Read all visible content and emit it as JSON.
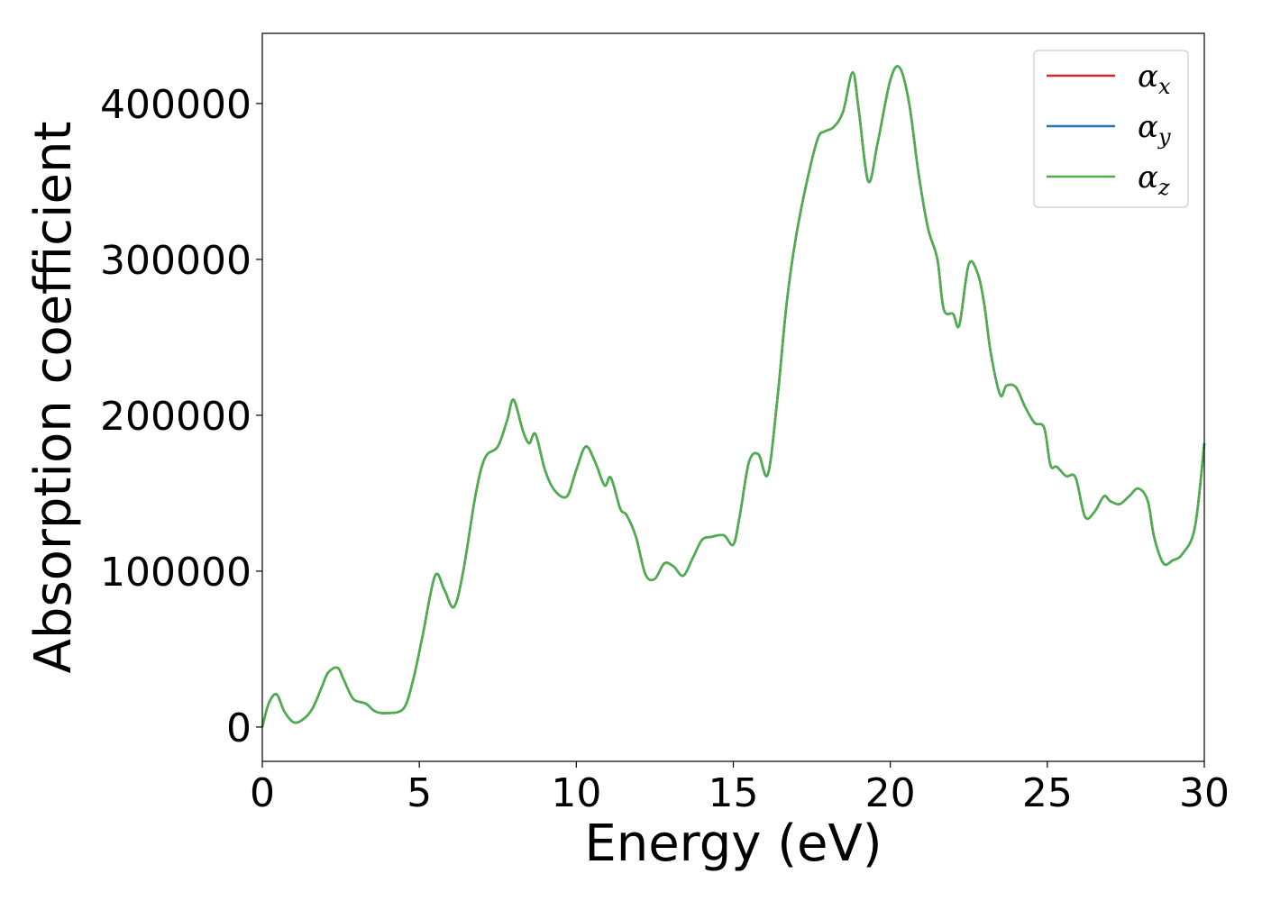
{
  "chart_data": {
    "type": "line",
    "title": "",
    "xlabel": "Energy (eV)",
    "ylabel": "Absorption coefficient",
    "xlim": [
      0,
      30
    ],
    "ylim": [
      -22000,
      445000
    ],
    "xticks": [
      0,
      5,
      10,
      15,
      20,
      25,
      30
    ],
    "xtick_labels": [
      "0",
      "5",
      "10",
      "15",
      "20",
      "25",
      "30"
    ],
    "yticks": [
      0,
      100000,
      200000,
      300000,
      400000
    ],
    "ytick_labels": [
      "0",
      "100000",
      "200000",
      "300000",
      "400000"
    ],
    "grid": false,
    "legend_position": "top-right",
    "legend": [
      {
        "symbol": "α",
        "sub": "x",
        "color": "#d62728"
      },
      {
        "symbol": "α",
        "sub": "y",
        "color": "#1f77b4"
      },
      {
        "symbol": "α",
        "sub": "z",
        "color": "#4daf4a"
      }
    ],
    "series": [
      {
        "color": "#d62728",
        "x": [
          0,
          0.2,
          0.45,
          0.7,
          1.0,
          1.3,
          1.6,
          1.9,
          2.1,
          2.4,
          2.6,
          2.9,
          3.3,
          3.6,
          4.0,
          4.5,
          4.8,
          5.1,
          5.5,
          5.8,
          6.1,
          6.4,
          6.8,
          7.1,
          7.5,
          7.8,
          8.0,
          8.3,
          8.5,
          8.7,
          9.0,
          9.3,
          9.7,
          10.0,
          10.3,
          10.6,
          10.9,
          11.1,
          11.4,
          11.6,
          11.9,
          12.2,
          12.5,
          12.8,
          13.1,
          13.4,
          13.7,
          14.0,
          14.3,
          14.7,
          15.0,
          15.2,
          15.5,
          15.8,
          16.1,
          16.4,
          16.7,
          17.0,
          17.4,
          17.7,
          17.9,
          18.2,
          18.5,
          18.8,
          19.0,
          19.3,
          19.6,
          20.0,
          20.3,
          20.6,
          20.9,
          21.2,
          21.5,
          21.7,
          22.0,
          22.2,
          22.5,
          22.8,
          23.0,
          23.2,
          23.5,
          23.7,
          24.0,
          24.3,
          24.6,
          24.9,
          25.1,
          25.3,
          25.6,
          25.9,
          26.2,
          26.5,
          26.8,
          27.0,
          27.3,
          27.6,
          27.9,
          28.2,
          28.4,
          28.7,
          29.0,
          29.3,
          29.7,
          30.0
        ],
        "y": [
          0,
          15000,
          21000,
          10000,
          3000,
          5000,
          12000,
          26000,
          35000,
          38000,
          30000,
          18000,
          15000,
          10000,
          9000,
          12000,
          30000,
          58000,
          97000,
          88000,
          77000,
          100000,
          150000,
          173000,
          180000,
          197000,
          210000,
          190000,
          182000,
          188000,
          165000,
          152000,
          148000,
          165000,
          180000,
          170000,
          155000,
          160000,
          140000,
          136000,
          122000,
          98000,
          95000,
          105000,
          103000,
          97000,
          108000,
          120000,
          122000,
          123000,
          117000,
          135000,
          170000,
          175000,
          162000,
          210000,
          272000,
          315000,
          355000,
          378000,
          382000,
          385000,
          395000,
          420000,
          395000,
          350000,
          375000,
          415000,
          423000,
          400000,
          355000,
          320000,
          300000,
          268000,
          265000,
          258000,
          297000,
          290000,
          270000,
          240000,
          213000,
          219000,
          218000,
          205000,
          195000,
          192000,
          168000,
          167000,
          161000,
          160000,
          135000,
          138000,
          148000,
          145000,
          143000,
          148000,
          153000,
          145000,
          122000,
          105000,
          107000,
          111000,
          128000,
          182000
        ]
      },
      {
        "color": "#1f77b4",
        "x": [
          0,
          0.2,
          0.45,
          0.7,
          1.0,
          1.3,
          1.6,
          1.9,
          2.1,
          2.4,
          2.6,
          2.9,
          3.3,
          3.6,
          4.0,
          4.5,
          4.8,
          5.1,
          5.5,
          5.8,
          6.1,
          6.4,
          6.8,
          7.1,
          7.5,
          7.8,
          8.0,
          8.3,
          8.5,
          8.7,
          9.0,
          9.3,
          9.7,
          10.0,
          10.3,
          10.6,
          10.9,
          11.1,
          11.4,
          11.6,
          11.9,
          12.2,
          12.5,
          12.8,
          13.1,
          13.4,
          13.7,
          14.0,
          14.3,
          14.7,
          15.0,
          15.2,
          15.5,
          15.8,
          16.1,
          16.4,
          16.7,
          17.0,
          17.4,
          17.7,
          17.9,
          18.2,
          18.5,
          18.8,
          19.0,
          19.3,
          19.6,
          20.0,
          20.3,
          20.6,
          20.9,
          21.2,
          21.5,
          21.7,
          22.0,
          22.2,
          22.5,
          22.8,
          23.0,
          23.2,
          23.5,
          23.7,
          24.0,
          24.3,
          24.6,
          24.9,
          25.1,
          25.3,
          25.6,
          25.9,
          26.2,
          26.5,
          26.8,
          27.0,
          27.3,
          27.6,
          27.9,
          28.2,
          28.4,
          28.7,
          29.0,
          29.3,
          29.7,
          30.0
        ],
        "y": [
          0,
          15000,
          21000,
          10000,
          3000,
          5000,
          12000,
          26000,
          35000,
          38000,
          30000,
          18000,
          15000,
          10000,
          9000,
          12000,
          30000,
          58000,
          97000,
          88000,
          77000,
          100000,
          150000,
          173000,
          180000,
          197000,
          210000,
          190000,
          182000,
          188000,
          165000,
          152000,
          148000,
          165000,
          180000,
          170000,
          155000,
          160000,
          140000,
          136000,
          122000,
          98000,
          95000,
          105000,
          103000,
          97000,
          108000,
          120000,
          122000,
          123000,
          117000,
          135000,
          170000,
          175000,
          162000,
          210000,
          272000,
          315000,
          355000,
          378000,
          382000,
          385000,
          395000,
          420000,
          395000,
          350000,
          375000,
          415000,
          423000,
          400000,
          355000,
          320000,
          300000,
          268000,
          265000,
          258000,
          297000,
          290000,
          270000,
          240000,
          213000,
          219000,
          218000,
          205000,
          195000,
          192000,
          168000,
          167000,
          161000,
          160000,
          135000,
          138000,
          148000,
          145000,
          143000,
          148000,
          153000,
          145000,
          122000,
          105000,
          107000,
          111000,
          128000,
          182000
        ]
      },
      {
        "color": "#4daf4a",
        "x": [
          0,
          0.2,
          0.45,
          0.7,
          1.0,
          1.3,
          1.6,
          1.9,
          2.1,
          2.4,
          2.6,
          2.9,
          3.3,
          3.6,
          4.0,
          4.5,
          4.8,
          5.1,
          5.5,
          5.8,
          6.1,
          6.4,
          6.8,
          7.1,
          7.5,
          7.8,
          8.0,
          8.3,
          8.5,
          8.7,
          9.0,
          9.3,
          9.7,
          10.0,
          10.3,
          10.6,
          10.9,
          11.1,
          11.4,
          11.6,
          11.9,
          12.2,
          12.5,
          12.8,
          13.1,
          13.4,
          13.7,
          14.0,
          14.3,
          14.7,
          15.0,
          15.2,
          15.5,
          15.8,
          16.1,
          16.4,
          16.7,
          17.0,
          17.4,
          17.7,
          17.9,
          18.2,
          18.5,
          18.8,
          19.0,
          19.3,
          19.6,
          20.0,
          20.3,
          20.6,
          20.9,
          21.2,
          21.5,
          21.7,
          22.0,
          22.2,
          22.5,
          22.8,
          23.0,
          23.2,
          23.5,
          23.7,
          24.0,
          24.3,
          24.6,
          24.9,
          25.1,
          25.3,
          25.6,
          25.9,
          26.2,
          26.5,
          26.8,
          27.0,
          27.3,
          27.6,
          27.9,
          28.2,
          28.4,
          28.7,
          29.0,
          29.3,
          29.7,
          30.0
        ],
        "y": [
          0,
          15000,
          21000,
          10000,
          3000,
          5000,
          12000,
          26000,
          35000,
          38000,
          30000,
          18000,
          15000,
          10000,
          9000,
          12000,
          30000,
          58000,
          97000,
          88000,
          77000,
          100000,
          150000,
          173000,
          180000,
          197000,
          210000,
          190000,
          182000,
          188000,
          165000,
          152000,
          148000,
          165000,
          180000,
          170000,
          155000,
          160000,
          140000,
          136000,
          122000,
          98000,
          95000,
          105000,
          103000,
          97000,
          108000,
          120000,
          122000,
          123000,
          117000,
          135000,
          170000,
          175000,
          162000,
          210000,
          272000,
          315000,
          355000,
          378000,
          382000,
          385000,
          395000,
          420000,
          395000,
          350000,
          375000,
          415000,
          423000,
          400000,
          355000,
          320000,
          300000,
          268000,
          265000,
          258000,
          297000,
          290000,
          270000,
          240000,
          213000,
          219000,
          218000,
          205000,
          195000,
          192000,
          168000,
          167000,
          161000,
          160000,
          135000,
          138000,
          148000,
          145000,
          143000,
          148000,
          153000,
          145000,
          122000,
          105000,
          107000,
          111000,
          128000,
          182000
        ]
      }
    ]
  }
}
